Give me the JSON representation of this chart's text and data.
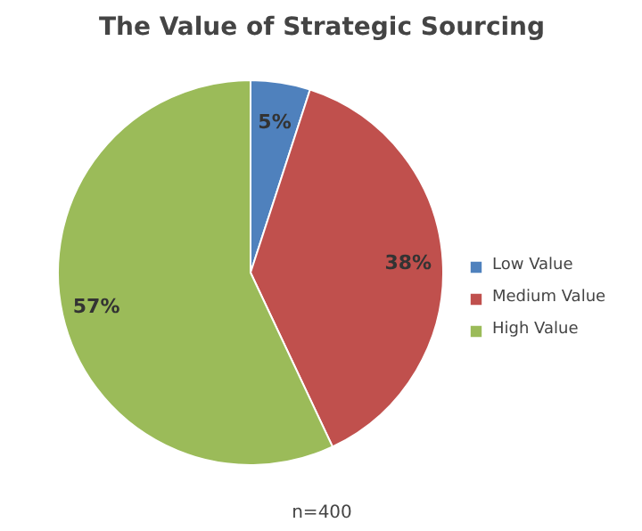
{
  "chart_data": {
    "type": "pie",
    "title": "The Value of Strategic Sourcing",
    "categories": [
      "Low Value",
      "Medium Value",
      "High Value"
    ],
    "values": [
      5,
      38,
      57
    ],
    "colors": [
      "#4f81bd",
      "#c0504d",
      "#9bbb59"
    ],
    "value_labels": [
      "5%",
      "38%",
      "57%"
    ],
    "legend": "right",
    "annotations": [
      "n=400"
    ]
  }
}
